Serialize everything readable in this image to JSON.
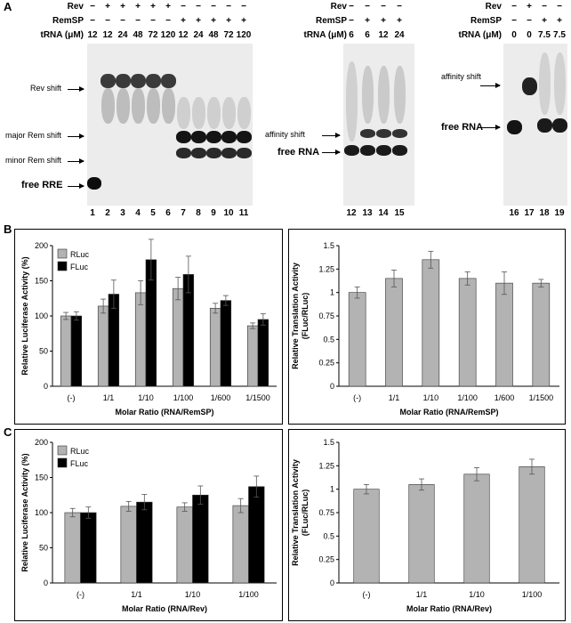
{
  "panel_a": {
    "label": "A",
    "gel1": {
      "row_labels": [
        "Rev",
        "RemSP",
        "tRNA (μM)"
      ],
      "rev": [
        "−",
        "+",
        "+",
        "+",
        "+",
        "+",
        "−",
        "−",
        "−",
        "−",
        "−"
      ],
      "remsp": [
        "−",
        "−",
        "−",
        "−",
        "−",
        "−",
        "+",
        "+",
        "+",
        "+",
        "+"
      ],
      "trna": [
        "12",
        "12",
        "24",
        "48",
        "72",
        "120",
        "12",
        "24",
        "48",
        "72",
        "120"
      ],
      "lanes": [
        "1",
        "2",
        "3",
        "4",
        "5",
        "6",
        "7",
        "8",
        "9",
        "10",
        "11"
      ],
      "labels": {
        "rev_shift": "Rev shift",
        "major": "major Rem shift",
        "minor": "minor Rem shift",
        "free": "free RRE"
      }
    },
    "gel2": {
      "row_labels": [
        "Rev",
        "RemSP",
        "tRNA (μM)"
      ],
      "rev": [
        "−",
        "−",
        "−",
        "−"
      ],
      "remsp": [
        "−",
        "+",
        "+",
        "+"
      ],
      "trna": [
        "6",
        "6",
        "12",
        "24"
      ],
      "lanes": [
        "12",
        "13",
        "14",
        "15"
      ],
      "labels": {
        "affinity": "affinity shift",
        "free": "free RNA"
      }
    },
    "gel3": {
      "row_labels": [
        "Rev",
        "RemSP",
        "tRNA (μM)"
      ],
      "rev": [
        "−",
        "+",
        "−",
        "−"
      ],
      "remsp": [
        "−",
        "−",
        "+",
        "+"
      ],
      "trna": [
        "0",
        "0",
        "7.5",
        "7.5"
      ],
      "lanes": [
        "16",
        "17",
        "18",
        "19"
      ],
      "labels": {
        "affinity": "affinity shift",
        "free": "free RNA"
      }
    }
  },
  "panel_b": {
    "label": "B"
  },
  "panel_c": {
    "label": "C"
  },
  "chart_data": [
    {
      "type": "bar",
      "panel": "B-left",
      "categories": [
        "(-)",
        "1/1",
        "1/10",
        "1/100",
        "1/600",
        "1/1500"
      ],
      "series": [
        {
          "name": "RLuc",
          "color": "#b3b3b3",
          "values": [
            100,
            114,
            133,
            139,
            111,
            86
          ],
          "errors": [
            5,
            10,
            17,
            16,
            7,
            4
          ]
        },
        {
          "name": "FLuc",
          "color": "#000000",
          "values": [
            100,
            131,
            180,
            159,
            122,
            95
          ],
          "errors": [
            6,
            20,
            29,
            26,
            7,
            8
          ]
        }
      ],
      "xlabel": "Molar Ratio (RNA/RemSP)",
      "ylabel": "Relative Luciferase Activity (%)",
      "ylim": [
        0,
        200
      ],
      "yticks": [
        "0",
        "50",
        "100",
        "150",
        "200"
      ],
      "legend": "top-left"
    },
    {
      "type": "bar",
      "panel": "B-right",
      "categories": [
        "(-)",
        "1/1",
        "1/10",
        "1/100",
        "1/600",
        "1/1500"
      ],
      "series": [
        {
          "color": "#b3b3b3",
          "values": [
            1.0,
            1.15,
            1.35,
            1.15,
            1.1,
            1.1
          ],
          "errors": [
            0.06,
            0.09,
            0.09,
            0.07,
            0.12,
            0.04
          ]
        }
      ],
      "xlabel": "Molar Ratio (RNA/RemSP)",
      "ylabel": "Relative Translation Activity (FLuc/RLuc)",
      "ylim": [
        0,
        1.5
      ],
      "yticks": [
        "0",
        "0.25",
        "0.5",
        "0.75",
        "1",
        "1.25",
        "1.5"
      ]
    },
    {
      "type": "bar",
      "panel": "C-left",
      "categories": [
        "(-)",
        "1/1",
        "1/10",
        "1/100"
      ],
      "series": [
        {
          "name": "RLuc",
          "color": "#b3b3b3",
          "values": [
            100,
            109,
            108,
            110
          ],
          "errors": [
            6,
            7,
            6,
            10
          ]
        },
        {
          "name": "FLuc",
          "color": "#000000",
          "values": [
            100,
            115,
            125,
            137
          ],
          "errors": [
            8,
            11,
            13,
            15
          ]
        }
      ],
      "xlabel": "Molar Ratio (RNA/Rev)",
      "ylabel": "Relative Luciferase Activity (%)",
      "ylim": [
        0,
        200
      ],
      "yticks": [
        "0",
        "50",
        "100",
        "150",
        "200"
      ],
      "legend": "top-left"
    },
    {
      "type": "bar",
      "panel": "C-right",
      "categories": [
        "(-)",
        "1/1",
        "1/10",
        "1/100"
      ],
      "series": [
        {
          "color": "#b3b3b3",
          "values": [
            1.0,
            1.05,
            1.16,
            1.24
          ],
          "errors": [
            0.05,
            0.06,
            0.07,
            0.08
          ]
        }
      ],
      "xlabel": "Molar Ratio (RNA/Rev)",
      "ylabel": "Relative Translation Activity (FLuc/RLuc)",
      "ylim": [
        0,
        1.5
      ],
      "yticks": [
        "0",
        "0.25",
        "0.5",
        "0.75",
        "1",
        "1.25",
        "1.5"
      ]
    }
  ]
}
